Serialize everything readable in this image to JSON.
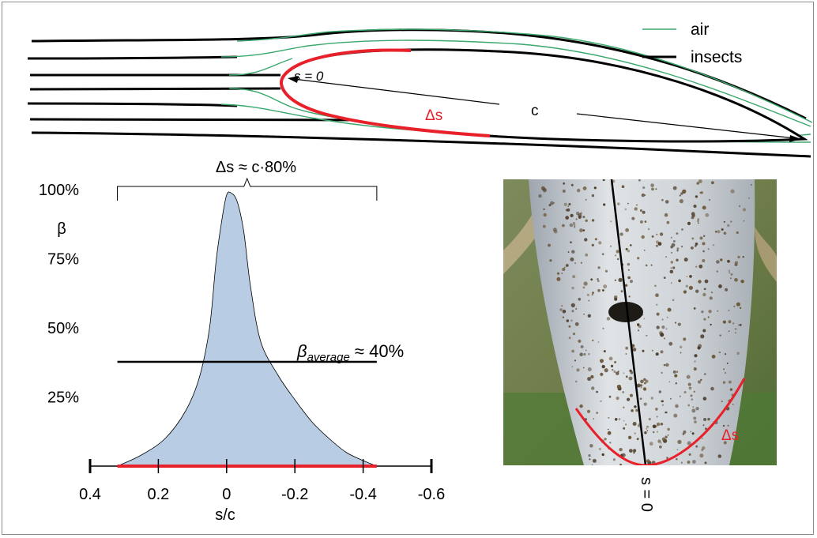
{
  "legend": {
    "air_label": "air",
    "insects_label": "insects",
    "air_color": "#3aa76d",
    "insects_color": "#000000"
  },
  "airfoil": {
    "stagnation_label": "s = 0",
    "chord_label": "c",
    "delta_s_label": "Δs",
    "highlight_color": "#e8202a"
  },
  "chart_data": {
    "type": "area",
    "title": "Δs ≈ c·80%",
    "xlabel": "s/c",
    "ylabel": "β",
    "x_ticks": [
      "0.4",
      "0.2",
      "0",
      "-0.2",
      "-0.4",
      "-0.6"
    ],
    "y_ticks": [
      "25%",
      "50%",
      "75%",
      "100%"
    ],
    "xlim": [
      0.4,
      -0.6
    ],
    "ylim": [
      0,
      100
    ],
    "fill_color": "#b8cde4",
    "series": [
      {
        "x": [
          0.32,
          0.25,
          0.18,
          0.12,
          0.08,
          0.05,
          0.03,
          0.01,
          0.0,
          -0.01,
          -0.03,
          -0.05,
          -0.07,
          -0.1,
          -0.15,
          -0.2,
          -0.25,
          -0.3,
          -0.35,
          -0.4,
          -0.44
        ],
        "y": [
          0,
          4,
          10,
          20,
          32,
          50,
          75,
          92,
          98,
          99,
          96,
          85,
          65,
          45,
          33,
          24,
          16,
          10,
          5,
          2,
          0
        ]
      }
    ],
    "average_line": {
      "label_prefix": "β",
      "label_subscript": "average",
      "label_suffix": " ≈ 40%",
      "value": 40,
      "x_range": [
        0.32,
        -0.44
      ]
    },
    "delta_s_range": [
      0.32,
      -0.44
    ]
  },
  "photo": {
    "delta_s_label": "Δs",
    "stagnation_label": "s = 0"
  }
}
